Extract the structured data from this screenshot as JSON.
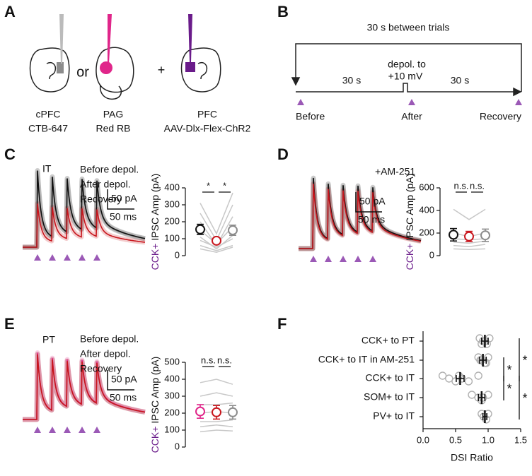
{
  "panel_a": {
    "panel": "A",
    "or": "or",
    "plus": "+",
    "sections": [
      {
        "region": "cPFC",
        "tracer": "CTB-647",
        "color": "#8c8c8c"
      },
      {
        "region": "PAG",
        "tracer": "Red RB",
        "color": "#e0268a"
      },
      {
        "region": "PFC",
        "tracer": "AAV-Dlx-Flex-ChR2",
        "color": "#6a1b8a"
      }
    ]
  },
  "panel_b": {
    "panel": "B",
    "title": "30 s between trials",
    "interval_before": "30 s",
    "step": [
      "depol. to",
      "+10 mV"
    ],
    "interval_after": "30 s",
    "timepoints": [
      {
        "name": "Before",
        "color": "#222222"
      },
      {
        "name": "After",
        "color": "#c8161d"
      },
      {
        "name": "Recovery",
        "color": "#8c8c8c"
      }
    ],
    "marker_color": "#9b59b6"
  },
  "chart_data": [
    {
      "type": "dot",
      "panel": "C",
      "label": "IT",
      "scale_bar": [
        "50 pA",
        "50 ms"
      ],
      "ylabel_marker": "CCK+",
      "ylabel": "IPSC Amp (pA)",
      "ylim": [
        0,
        400
      ],
      "yticks": [
        0,
        100,
        200,
        300,
        400
      ],
      "series": [
        {
          "name": "Before depol.",
          "color": "#111111",
          "mean": 155,
          "error": 30
        },
        {
          "name": "After depol.",
          "color": "#c8161d",
          "mean": 88,
          "error": 18
        },
        {
          "name": "Recovery",
          "color": "#8c8c8c",
          "mean": 150,
          "error": 30
        }
      ],
      "cells": [
        [
          310,
          130,
          370
        ],
        [
          250,
          90,
          300
        ],
        [
          200,
          60,
          230
        ],
        [
          150,
          70,
          170
        ],
        [
          110,
          40,
          120
        ],
        [
          90,
          50,
          100
        ],
        [
          60,
          30,
          60
        ],
        [
          40,
          20,
          50
        ]
      ],
      "significance": [
        "*",
        "*"
      ]
    },
    {
      "type": "dot",
      "panel": "D",
      "label": "+AM-251",
      "scale_bar": [
        "50 pA",
        "50 ms"
      ],
      "ylabel_marker": "CCK+",
      "ylabel": "IPSC Amp (pA)",
      "ylim": [
        0,
        600
      ],
      "yticks": [
        0,
        200,
        400,
        600
      ],
      "series": [
        {
          "color": "#111111",
          "mean": 185,
          "error": 55
        },
        {
          "color": "#c8161d",
          "mean": 170,
          "error": 45
        },
        {
          "color": "#8c8c8c",
          "mean": 180,
          "error": 55
        }
      ],
      "cells": [
        [
          410,
          320,
          410
        ],
        [
          200,
          170,
          200
        ],
        [
          150,
          140,
          150
        ],
        [
          120,
          110,
          130
        ],
        [
          90,
          80,
          100
        ],
        [
          60,
          55,
          60
        ]
      ],
      "significance": [
        "n.s.",
        "n.s."
      ]
    },
    {
      "type": "dot",
      "panel": "E",
      "label": "PT",
      "scale_bar": [
        "50 pA",
        "50 ms"
      ],
      "ylabel_marker": "CCK+",
      "ylabel": "IPSC Amp (pA)",
      "ylim": [
        0,
        500
      ],
      "yticks": [
        0,
        100,
        200,
        300,
        400,
        500
      ],
      "series": [
        {
          "name": "Before depol.",
          "color": "#e0268a",
          "mean": 210,
          "error": 40
        },
        {
          "name": "After depol.",
          "color": "#c8161d",
          "mean": 205,
          "error": 40
        },
        {
          "name": "Recovery",
          "color": "#8c8c8c",
          "mean": 205,
          "error": 40
        }
      ],
      "cells": [
        [
          380,
          400,
          370
        ],
        [
          300,
          320,
          300
        ],
        [
          250,
          250,
          260
        ],
        [
          200,
          210,
          200
        ],
        [
          150,
          150,
          160
        ],
        [
          120,
          130,
          120
        ],
        [
          90,
          100,
          95
        ]
      ],
      "significance": [
        "n.s.",
        "n.s."
      ]
    },
    {
      "type": "strip",
      "panel": "F",
      "xlabel": "DSI Ratio",
      "categories": [
        "CCK+ to PT",
        "CCK+ to IT in AM-251",
        "CCK+ to IT",
        "SOM+ to IT",
        "PV+ to IT"
      ],
      "means": [
        0.95,
        0.92,
        0.57,
        0.9,
        0.95
      ],
      "errors": [
        0.05,
        0.05,
        0.06,
        0.05,
        0.03
      ],
      "points": [
        [
          0.87,
          0.92,
          0.98,
          1.02,
          0.95,
          0.9
        ],
        [
          0.85,
          0.9,
          0.95,
          1.0,
          0.88,
          0.97
        ],
        [
          0.3,
          0.4,
          0.5,
          0.55,
          0.6,
          0.7,
          0.85
        ],
        [
          0.75,
          0.85,
          0.9,
          1.0,
          0.92
        ],
        [
          0.9,
          0.93,
          0.97,
          1.0
        ]
      ],
      "xlim": [
        0,
        1.5
      ],
      "xticks": [
        {
          "value": 0,
          "label": "0.0"
        },
        1.5,
        {
          "value": 0.5,
          "label": "0.5"
        },
        {
          "value": 1,
          "label": "1.0"
        }
      ],
      "significance": [
        {
          "from": "CCK+ to IT in AM-251",
          "to": "CCK+ to IT",
          "label": "*"
        },
        {
          "from": "CCK+ to IT",
          "to": "SOM+ to IT",
          "label": "*"
        },
        {
          "from": "CCK+ to PT",
          "to": "CCK+ to IT",
          "label": "*"
        },
        {
          "from": "CCK+ to IT",
          "to": "PV+ to IT",
          "label": "*"
        }
      ]
    }
  ]
}
